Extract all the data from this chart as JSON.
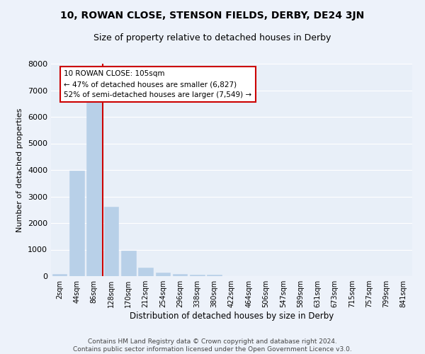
{
  "title": "10, ROWAN CLOSE, STENSON FIELDS, DERBY, DE24 3JN",
  "subtitle": "Size of property relative to detached houses in Derby",
  "xlabel": "Distribution of detached houses by size in Derby",
  "ylabel": "Number of detached properties",
  "bar_color": "#b8d0e8",
  "bar_edge_color": "#b8d0e8",
  "background_color": "#e8eff8",
  "grid_color": "#ffffff",
  "fig_background": "#edf2fa",
  "categories": [
    "2sqm",
    "44sqm",
    "86sqm",
    "128sqm",
    "170sqm",
    "212sqm",
    "254sqm",
    "296sqm",
    "338sqm",
    "380sqm",
    "422sqm",
    "464sqm",
    "506sqm",
    "547sqm",
    "589sqm",
    "631sqm",
    "673sqm",
    "715sqm",
    "757sqm",
    "799sqm",
    "841sqm"
  ],
  "values": [
    80,
    3980,
    6560,
    2620,
    950,
    315,
    140,
    90,
    65,
    60,
    0,
    0,
    0,
    0,
    0,
    0,
    0,
    0,
    0,
    0,
    0
  ],
  "ylim": [
    0,
    8000
  ],
  "yticks": [
    0,
    1000,
    2000,
    3000,
    4000,
    5000,
    6000,
    7000,
    8000
  ],
  "vline_color": "#cc0000",
  "annotation_text": "10 ROWAN CLOSE: 105sqm\n← 47% of detached houses are smaller (6,827)\n52% of semi-detached houses are larger (7,549) →",
  "annotation_box_color": "#ffffff",
  "annotation_box_edge": "#cc0000",
  "footer_line1": "Contains HM Land Registry data © Crown copyright and database right 2024.",
  "footer_line2": "Contains public sector information licensed under the Open Government Licence v3.0."
}
